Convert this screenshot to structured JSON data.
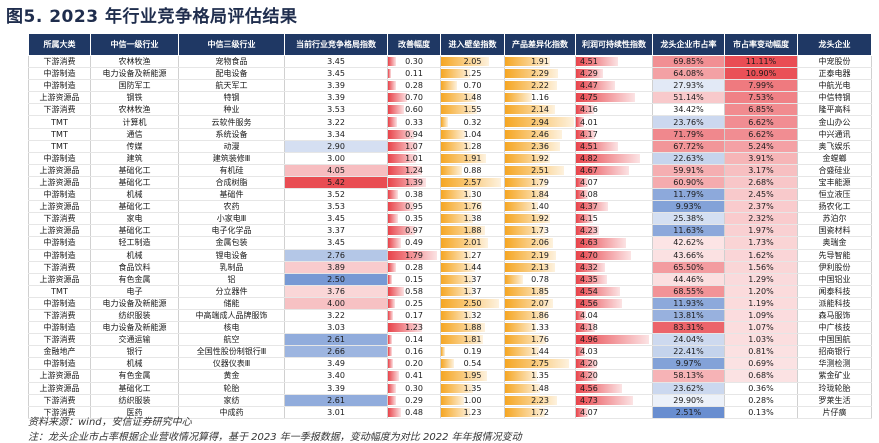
{
  "title": "图5. 2023 年行业竞争格局评估结果",
  "headers": [
    "所属大类",
    "中信一级行业",
    "中信三级行业",
    "当前行业竞争格局指数",
    "改善幅度",
    "进入壁垒指数",
    "产品差异化指数",
    "利润可持续性指数",
    "龙头企业市占率",
    "市占率变动幅度",
    "龙头企业"
  ],
  "rows": [
    [
      "下游消费",
      "农林牧渔",
      "宠物食品",
      "3.45",
      "0.30",
      "2.05",
      "1.91",
      "4.51",
      "69.85%",
      "11.11%",
      "中宠股份"
    ],
    [
      "中游制造",
      "电力设备及新能源",
      "配电设备",
      "3.45",
      "0.11",
      "1.25",
      "2.29",
      "4.29",
      "64.08%",
      "10.90%",
      "正泰电器"
    ],
    [
      "中游制造",
      "国防军工",
      "航天军工",
      "3.39",
      "0.28",
      "0.70",
      "2.22",
      "4.47",
      "27.93%",
      "7.99%",
      "中航光电"
    ],
    [
      "上游资源品",
      "钢铁",
      "特钢",
      "3.39",
      "0.70",
      "1.48",
      "1.16",
      "4.75",
      "51.14%",
      "7.53%",
      "中信特钢"
    ],
    [
      "下游消费",
      "农林牧渔",
      "种业",
      "3.53",
      "0.60",
      "1.55",
      "2.14",
      "4.16",
      "34.42%",
      "6.85%",
      "隆平高科"
    ],
    [
      "TMT",
      "计算机",
      "云软件服务",
      "3.22",
      "0.33",
      "0.32",
      "2.94",
      "4.01",
      "23.76%",
      "6.62%",
      "金山办公"
    ],
    [
      "TMT",
      "通信",
      "系统设备",
      "3.34",
      "0.94",
      "1.04",
      "2.46",
      "4.17",
      "71.79%",
      "6.62%",
      "中兴通讯"
    ],
    [
      "TMT",
      "传媒",
      "动漫",
      "2.90",
      "1.07",
      "1.28",
      "2.36",
      "4.51",
      "67.72%",
      "5.24%",
      "奥飞娱乐"
    ],
    [
      "中游制造",
      "建筑",
      "建筑装修Ⅲ",
      "3.00",
      "1.01",
      "1.91",
      "1.92",
      "4.82",
      "22.63%",
      "3.91%",
      "金螳螂"
    ],
    [
      "上游资源品",
      "基础化工",
      "有机硅",
      "4.05",
      "1.24",
      "0.88",
      "2.51",
      "4.67",
      "59.91%",
      "3.17%",
      "合盛硅业"
    ],
    [
      "上游资源品",
      "基础化工",
      "合成树脂",
      "5.42",
      "1.39",
      "2.57",
      "1.79",
      "4.07",
      "60.90%",
      "2.68%",
      "宝丰能源"
    ],
    [
      "中游制造",
      "机械",
      "基础件",
      "3.52",
      "0.38",
      "1.30",
      "1.84",
      "4.08",
      "11.79%",
      "2.45%",
      "恒立液压"
    ],
    [
      "上游资源品",
      "基础化工",
      "农药",
      "3.53",
      "0.95",
      "1.76",
      "1.40",
      "4.37",
      "9.93%",
      "2.37%",
      "扬农化工"
    ],
    [
      "下游消费",
      "家电",
      "小家电Ⅲ",
      "3.45",
      "0.35",
      "1.38",
      "1.92",
      "4.15",
      "25.38%",
      "2.32%",
      "苏泊尔"
    ],
    [
      "上游资源品",
      "基础化工",
      "电子化学品",
      "3.37",
      "0.97",
      "1.88",
      "1.73",
      "4.23",
      "11.63%",
      "1.97%",
      "国瓷材料"
    ],
    [
      "中游制造",
      "轻工制造",
      "金属包装",
      "3.45",
      "0.49",
      "2.01",
      "2.06",
      "4.63",
      "42.62%",
      "1.73%",
      "奥瑞金"
    ],
    [
      "中游制造",
      "机械",
      "锂电设备",
      "2.76",
      "1.79",
      "1.27",
      "2.19",
      "4.70",
      "43.66%",
      "1.62%",
      "先导智能"
    ],
    [
      "下游消费",
      "食品饮料",
      "乳制品",
      "3.89",
      "0.28",
      "1.44",
      "2.13",
      "4.32",
      "65.50%",
      "1.56%",
      "伊利股份"
    ],
    [
      "上游资源品",
      "有色金属",
      "铝",
      "2.50",
      "0.15",
      "1.37",
      "0.78",
      "4.35",
      "44.46%",
      "1.29%",
      "中国铝业"
    ],
    [
      "TMT",
      "电子",
      "分立器件",
      "3.76",
      "0.58",
      "1.37",
      "1.85",
      "4.54",
      "68.55%",
      "1.20%",
      "闻泰科技"
    ],
    [
      "中游制造",
      "电力设备及新能源",
      "储能",
      "4.00",
      "0.25",
      "2.50",
      "2.07",
      "4.56",
      "11.93%",
      "1.19%",
      "派能科技"
    ],
    [
      "下游消费",
      "纺织服装",
      "中高端成人品牌服饰",
      "3.22",
      "0.17",
      "1.32",
      "1.86",
      "4.04",
      "13.81%",
      "1.09%",
      "森马服饰"
    ],
    [
      "中游制造",
      "电力设备及新能源",
      "核电",
      "3.03",
      "1.23",
      "1.88",
      "1.33",
      "4.18",
      "83.31%",
      "1.07%",
      "中广核技"
    ],
    [
      "下游消费",
      "交通运输",
      "航空",
      "2.61",
      "0.14",
      "1.81",
      "1.76",
      "4.96",
      "24.04%",
      "1.03%",
      "中国国航"
    ],
    [
      "金融地产",
      "银行",
      "全国性股份制银行Ⅲ",
      "2.66",
      "0.16",
      "0.19",
      "1.44",
      "4.03",
      "22.41%",
      "0.81%",
      "招商银行"
    ],
    [
      "中游制造",
      "机械",
      "仪器仪表Ⅲ",
      "3.49",
      "0.20",
      "0.54",
      "2.75",
      "4.20",
      "9.97%",
      "0.69%",
      "华测检测"
    ],
    [
      "上游资源品",
      "有色金属",
      "黄金",
      "3.40",
      "0.41",
      "1.95",
      "1.35",
      "4.20",
      "58.13%",
      "0.68%",
      "紫金矿业"
    ],
    [
      "上游资源品",
      "基础化工",
      "轮胎",
      "3.39",
      "0.30",
      "1.35",
      "1.48",
      "4.56",
      "23.62%",
      "0.36%",
      "玲珑轮胎"
    ],
    [
      "下游消费",
      "纺织服装",
      "家纺",
      "2.61",
      "0.29",
      "1.00",
      "2.23",
      "4.73",
      "29.90%",
      "0.28%",
      "罗莱生活"
    ],
    [
      "下游消费",
      "医药",
      "中成药",
      "3.01",
      "0.48",
      "1.23",
      "1.72",
      "4.07",
      "2.51%",
      "0.13%",
      "片仔癀"
    ]
  ],
  "footer_source": "资料来源：wind，安信证券研究中心",
  "footer_note": "注：龙头企业市占率根据企业营收情况算得，基于 2023 年一季报数据，变动幅度为对比 2022 年年报情况变动",
  "colors": {
    "header_bg": "#1f3864",
    "index_low": "#4472c4",
    "index_high": "#e8434a",
    "improve": "#e8434a",
    "barrier": "#f5a623",
    "diff": "#f5a623",
    "profit": "#e8434a",
    "share_low": "#4472c4",
    "share_high": "#e8434a",
    "change": "#e8434a"
  }
}
